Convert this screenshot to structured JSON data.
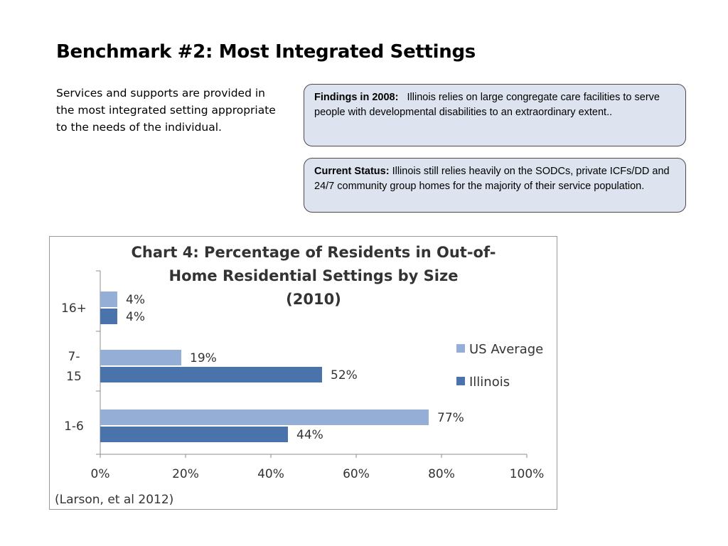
{
  "slide": {
    "title": "Benchmark #2: Most Integrated Settings",
    "body": "Services and supports are provided in the most integrated setting appropriate to the needs of the individual."
  },
  "callouts": [
    {
      "label": "Findings in 2008:",
      "text": "Illinois relies on large congregate care facilities to serve people with developmental disabilities to an extraordinary extent.."
    },
    {
      "label": "Current Status:",
      "text": "Illinois still relies heavily on the SODCs, private ICFs/DD and 24/7 community group homes for the majority of their service population."
    }
  ],
  "chart_data": {
    "type": "bar",
    "orientation": "horizontal",
    "title": "Chart 4: Percentage of Residents in Out-of-Home Residential Settings by Size (2010)",
    "title_lines": [
      "Chart 4: Percentage of Residents in Out-of-",
      "Home Residential Settings by Size",
      "(2010)"
    ],
    "categories": [
      "16+",
      "7-15",
      "1-6"
    ],
    "category_lines": [
      [
        "16+"
      ],
      [
        "7-",
        "15"
      ],
      [
        "1-6"
      ]
    ],
    "series": [
      {
        "name": "US Average",
        "values": [
          4,
          19,
          77
        ],
        "color": "#95aed6"
      },
      {
        "name": "Illinois",
        "values": [
          4,
          52,
          44
        ],
        "color": "#4a72ab"
      }
    ],
    "data_labels": [
      [
        "4%",
        "19%",
        "77%"
      ],
      [
        "4%",
        "52%",
        "44%"
      ]
    ],
    "xlim": [
      0,
      100
    ],
    "x_ticks": [
      "0%",
      "20%",
      "40%",
      "60%",
      "80%",
      "100%"
    ],
    "legend_position": "right",
    "grid": false,
    "source": "(Larson, et al 2012)"
  }
}
